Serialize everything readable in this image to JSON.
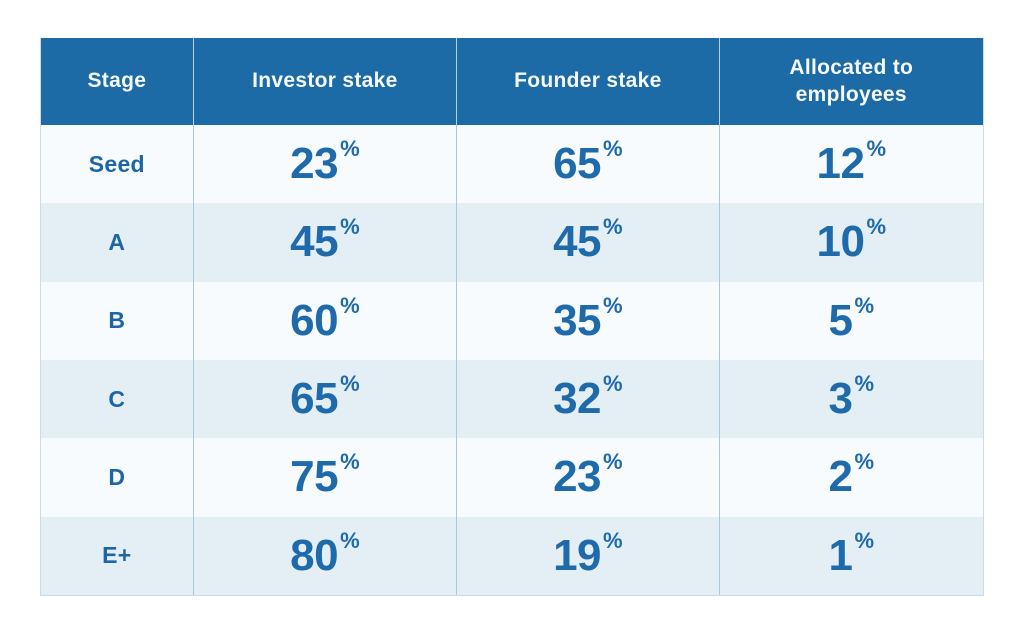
{
  "colors": {
    "header_bg": "#1c6aa6",
    "header_text": "#f6fafc",
    "row_light": "#f7fbfd",
    "row_striped": "#e3eef5",
    "value_text": "#1e6aab",
    "divider": "#a9c9db",
    "outer_border": "#c9dce8"
  },
  "table": {
    "percent_sign": "%",
    "headers": [
      "Stage",
      "Investor stake",
      "Founder stake",
      "Allocated to employees"
    ],
    "rows": [
      {
        "stage": "Seed",
        "investor": "23",
        "founder": "65",
        "employees": "12"
      },
      {
        "stage": "A",
        "investor": "45",
        "founder": "45",
        "employees": "10"
      },
      {
        "stage": "B",
        "investor": "60",
        "founder": "35",
        "employees": "5"
      },
      {
        "stage": "C",
        "investor": "65",
        "founder": "32",
        "employees": "3"
      },
      {
        "stage": "D",
        "investor": "75",
        "founder": "23",
        "employees": "2"
      },
      {
        "stage": "E+",
        "investor": "80",
        "founder": "19",
        "employees": "1"
      }
    ]
  },
  "chart_data": {
    "type": "table",
    "title": "",
    "columns": [
      "Stage",
      "Investor stake",
      "Founder stake",
      "Allocated to employees"
    ],
    "unit": "%",
    "rows": [
      [
        "Seed",
        23,
        65,
        12
      ],
      [
        "A",
        45,
        45,
        10
      ],
      [
        "B",
        60,
        35,
        5
      ],
      [
        "C",
        65,
        32,
        3
      ],
      [
        "D",
        75,
        23,
        2
      ],
      [
        "E+",
        80,
        19,
        1
      ]
    ]
  }
}
